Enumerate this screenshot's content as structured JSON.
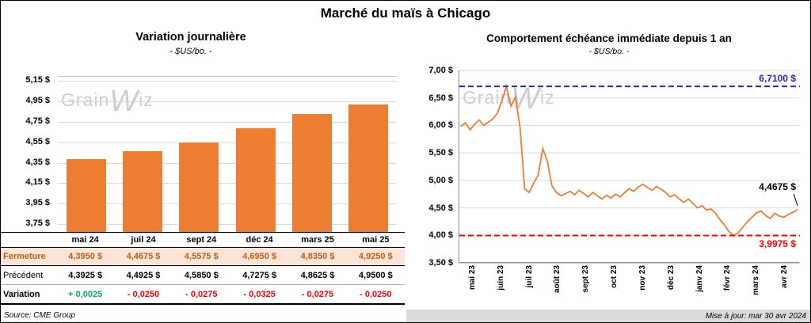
{
  "page": {
    "title": "Marché du maïs à Chicago",
    "source": "Source: CME Group",
    "updated": "Mise à jour: mar 30 avr 2024",
    "watermark": {
      "pre": "Grain",
      "w": "W",
      "post": "iz"
    }
  },
  "colors": {
    "accent_orange": "#ED7D31",
    "fermeture_bg": "#FBE5D6",
    "fermeture_text": "#C55A11",
    "positive": "#00B050",
    "negative": "#FF0000",
    "high_line": "#2424C8",
    "low_line": "#FF0000",
    "last_label": "#000000",
    "grid": "#D9D9D9",
    "axis": "#9A9A9A",
    "footer_bg": "#DBDBDB",
    "watermark": "#CDCDCD"
  },
  "table": {
    "rows": [
      {
        "label": "Fermeture",
        "type": "fermeture",
        "values": [
          "4,3950 $",
          "4,4675 $",
          "4,5575 $",
          "4,6950 $",
          "4,8350 $",
          "4,9250 $"
        ]
      },
      {
        "label": "Précédent",
        "type": "precedent",
        "values": [
          "4,3925 $",
          "4,4925 $",
          "4,5850 $",
          "4,7275 $",
          "4,8625 $",
          "4,9500 $"
        ]
      },
      {
        "label": "Variation",
        "type": "variation",
        "values": [
          "+ 0,0025",
          "- 0,0250",
          "- 0,0275",
          "- 0,0325",
          "- 0,0275",
          "- 0,0250"
        ],
        "value_colors": [
          "positive",
          "negative",
          "negative",
          "negative",
          "negative",
          "negative"
        ]
      }
    ]
  },
  "chart_data": [
    {
      "type": "bar",
      "title": "Variation journalière",
      "subtitle": "- $US/bo. -",
      "categories": [
        "mai 24",
        "juil 24",
        "sept 24",
        "déc 24",
        "mars 25",
        "mai 25"
      ],
      "values": [
        4.395,
        4.4675,
        4.5575,
        4.695,
        4.835,
        4.925
      ],
      "ylabel": "$US/bo.",
      "yticks": [
        3.75,
        3.95,
        4.15,
        4.35,
        4.55,
        4.75,
        4.95,
        5.15
      ],
      "ytick_labels": [
        "3,75 $",
        "3,95 $",
        "4,15 $",
        "4,35 $",
        "4,55 $",
        "4,75 $",
        "4,95 $",
        "5,15 $"
      ],
      "render_ylim": [
        3.68,
        5.2
      ],
      "grid": true,
      "legend": false
    },
    {
      "type": "line",
      "title": "Comportement échéance immédiate depuis 1 an",
      "subtitle": "- $US/bo. -",
      "x_labels": [
        "mai 23",
        "juin 23",
        "juil 23",
        "août 23",
        "sept 23",
        "oct 23",
        "nov 23",
        "déc 23",
        "janv 24",
        "févr 24",
        "mars 24",
        "avr 24"
      ],
      "values": [
        5.98,
        6.05,
        5.92,
        6.02,
        6.1,
        6.0,
        6.06,
        6.12,
        6.22,
        6.45,
        6.71,
        6.35,
        6.52,
        5.95,
        4.85,
        4.78,
        4.95,
        5.1,
        5.58,
        5.35,
        4.9,
        4.78,
        4.72,
        4.76,
        4.8,
        4.74,
        4.82,
        4.76,
        4.7,
        4.78,
        4.72,
        4.66,
        4.73,
        4.68,
        4.75,
        4.7,
        4.78,
        4.85,
        4.8,
        4.88,
        4.93,
        4.87,
        4.82,
        4.89,
        4.84,
        4.78,
        4.7,
        4.74,
        4.66,
        4.6,
        4.66,
        4.58,
        4.5,
        4.54,
        4.46,
        4.48,
        4.4,
        4.28,
        4.18,
        4.06,
        3.9975,
        4.05,
        4.15,
        4.25,
        4.33,
        4.41,
        4.44,
        4.36,
        4.31,
        4.4,
        4.35,
        4.33,
        4.38,
        4.42,
        4.4675
      ],
      "ylim": [
        3.5,
        7.0
      ],
      "yticks": [
        3.5,
        4.0,
        4.5,
        5.0,
        5.5,
        6.0,
        6.5,
        7.0
      ],
      "ytick_labels": [
        "3,50 $",
        "4,00 $",
        "4,50 $",
        "5,00 $",
        "5,50 $",
        "6,00 $",
        "6,50 $",
        "7,00 $"
      ],
      "high_line": {
        "value": 6.71,
        "label": "6,7100 $"
      },
      "low_line": {
        "value": 3.9975,
        "label": "3,9975 $"
      },
      "last_label": {
        "value": 4.4675,
        "label": "4,4675 $"
      },
      "grid": true,
      "legend": false
    }
  ]
}
